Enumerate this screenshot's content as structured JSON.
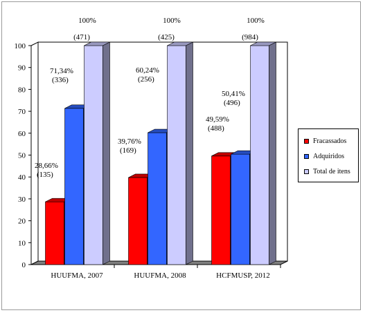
{
  "chart_data": {
    "type": "bar",
    "categories": [
      "HUUFMA, 2007",
      "HUUFMA, 2008",
      "HCFMUSP, 2012"
    ],
    "series": [
      {
        "name": "Fracassados",
        "color": "#ff0000",
        "values": [
          28.66,
          39.76,
          49.59
        ],
        "labels": [
          [
            "28,66%",
            "(135)"
          ],
          [
            "39,76%",
            "(169)"
          ],
          [
            "49,59%",
            "(488)"
          ]
        ]
      },
      {
        "name": "Adquiridos",
        "color": "#3366ff",
        "values": [
          71.34,
          60.24,
          50.41
        ],
        "labels": [
          [
            "71,34%",
            "(336)"
          ],
          [
            "60,24%",
            "(256)"
          ],
          [
            "50,41%",
            "(496)"
          ]
        ]
      },
      {
        "name": "Total de itens",
        "color": "#ccccff",
        "values": [
          100,
          100,
          100
        ],
        "labels": [
          [
            "100%",
            "(471)"
          ],
          [
            "100%",
            "(425)"
          ],
          [
            "100%",
            "(984)"
          ]
        ]
      }
    ],
    "yticks": [
      "0",
      "10",
      "20",
      "30",
      "40",
      "50",
      "60",
      "70",
      "80",
      "90",
      "100"
    ],
    "ylim": [
      0,
      100
    ],
    "grid": false,
    "legend_position": "right",
    "style": "3d"
  }
}
